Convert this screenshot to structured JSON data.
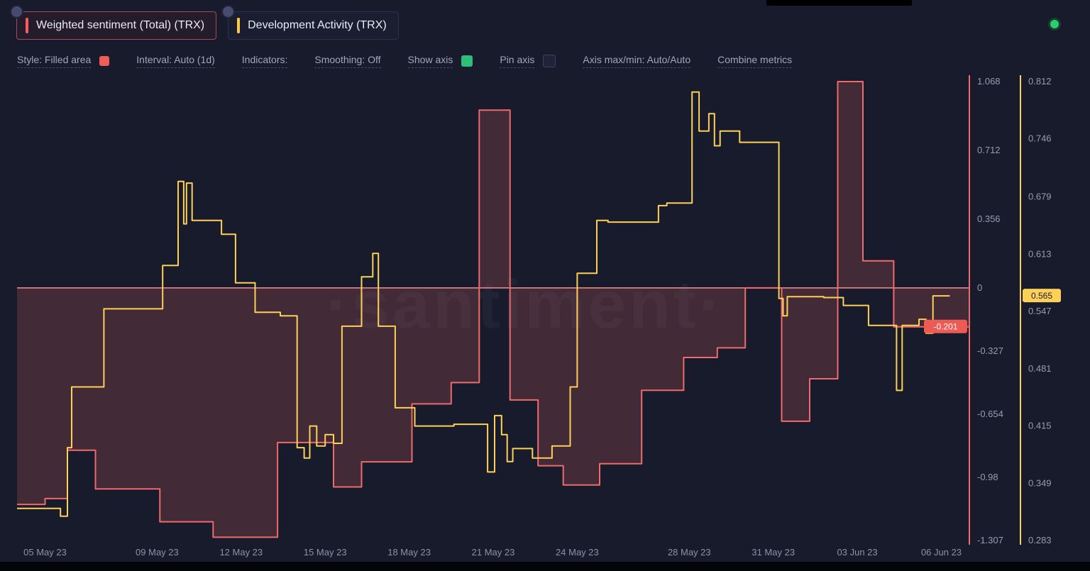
{
  "header": {
    "metrics": [
      {
        "label": "Weighted sentiment (Total) (TRX)",
        "color": "#ff5c5c",
        "active": true
      },
      {
        "label": "Development Activity (TRX)",
        "color": "#ffcb47",
        "active": false
      }
    ],
    "live_dot_color": "#2ecc71"
  },
  "toolbar": {
    "style": "Style: Filled area",
    "style_swatch_color": "#f05c57",
    "interval": "Interval: Auto (1d)",
    "indicators": "Indicators:",
    "smoothing": "Smoothing: Off",
    "show_axis": "Show axis",
    "show_axis_swatch_color": "#2fbd7a",
    "pin_axis": "Pin axis",
    "axis_maxmin": "Axis max/min: Auto/Auto",
    "combine_metrics": "Combine metrics"
  },
  "watermark": "·santiment·",
  "chart_data": {
    "type": "line",
    "subtype": "step",
    "grid": false,
    "x_span_days": 34,
    "x_start_date": "04 May 23",
    "x_ticks": [
      {
        "d": 1,
        "label": "05 May 23"
      },
      {
        "d": 5,
        "label": "09 May 23"
      },
      {
        "d": 8,
        "label": "12 May 23"
      },
      {
        "d": 11,
        "label": "15 May 23"
      },
      {
        "d": 14,
        "label": "18 May 23"
      },
      {
        "d": 17,
        "label": "21 May 23"
      },
      {
        "d": 20,
        "label": "24 May 23"
      },
      {
        "d": 24,
        "label": "28 May 23"
      },
      {
        "d": 27,
        "label": "31 May 23"
      },
      {
        "d": 30,
        "label": "03 Jun 23"
      },
      {
        "d": 33,
        "label": "06 Jun 23"
      }
    ],
    "series": [
      {
        "name": "Weighted sentiment (Total) (TRX)",
        "style": "filled-step-area",
        "color": "#ef6a6a",
        "fill_color": "rgba(239,106,106,0.2)",
        "zero_line": true,
        "axis": {
          "min": -1.307,
          "max": 1.068,
          "ticks": [
            "1.068",
            "0.712",
            "0.356",
            "0",
            "-0.327",
            "-0.654",
            "-0.98",
            "-1.307"
          ]
        },
        "badge": {
          "label": "-0.201",
          "value": -0.201
        },
        "points": [
          [
            0,
            -1.12
          ],
          [
            1,
            -1.09
          ],
          [
            1.8,
            -0.84
          ],
          [
            2.8,
            -1.04
          ],
          [
            5.1,
            -1.21
          ],
          [
            7,
            -1.29
          ],
          [
            9.3,
            -0.8
          ],
          [
            11.3,
            -1.03
          ],
          [
            12.3,
            -0.9
          ],
          [
            14.1,
            -0.6
          ],
          [
            15.5,
            -0.49
          ],
          [
            16.5,
            0.92
          ],
          [
            17.6,
            -0.58
          ],
          [
            18.6,
            -0.92
          ],
          [
            19.5,
            -1.02
          ],
          [
            20.8,
            -0.91
          ],
          [
            22.3,
            -0.53
          ],
          [
            23.8,
            -0.36
          ],
          [
            25,
            -0.31
          ],
          [
            26,
            0
          ],
          [
            27.3,
            -0.69
          ],
          [
            28.3,
            -0.47
          ],
          [
            29.3,
            1.068
          ],
          [
            30.2,
            0.14
          ],
          [
            31.3,
            -0.201
          ],
          [
            34,
            -0.201
          ]
        ]
      },
      {
        "name": "Development Activity (TRX)",
        "style": "step-line",
        "color": "#fdd057",
        "axis": {
          "min": 0.283,
          "max": 0.812,
          "ticks": [
            "0.812",
            "0.746",
            "0.679",
            "0.613",
            "0.547",
            "0.481",
            "0.415",
            "0.349",
            "0.283"
          ]
        },
        "badge": {
          "label": "0.565",
          "value": 0.565
        },
        "points": [
          [
            0,
            0.32
          ],
          [
            1.55,
            0.311
          ],
          [
            1.8,
            0.39
          ],
          [
            1.95,
            0.46
          ],
          [
            3.1,
            0.55
          ],
          [
            5.2,
            0.6
          ],
          [
            5.75,
            0.697
          ],
          [
            5.95,
            0.648
          ],
          [
            6.05,
            0.695
          ],
          [
            6.25,
            0.652
          ],
          [
            7.3,
            0.636
          ],
          [
            7.8,
            0.58
          ],
          [
            8.5,
            0.546
          ],
          [
            9.4,
            0.542
          ],
          [
            10,
            0.39
          ],
          [
            10.25,
            0.378
          ],
          [
            10.45,
            0.415
          ],
          [
            10.7,
            0.392
          ],
          [
            11,
            0.405
          ],
          [
            11.3,
            0.395
          ],
          [
            11.6,
            0.53
          ],
          [
            12.3,
            0.587
          ],
          [
            12.7,
            0.614
          ],
          [
            12.9,
            0.53
          ],
          [
            13.5,
            0.436
          ],
          [
            14.2,
            0.415
          ],
          [
            15.6,
            0.417
          ],
          [
            16.8,
            0.362
          ],
          [
            17.05,
            0.427
          ],
          [
            17.3,
            0.405
          ],
          [
            17.5,
            0.374
          ],
          [
            17.7,
            0.389
          ],
          [
            18.4,
            0.378
          ],
          [
            19.1,
            0.392
          ],
          [
            19.75,
            0.46
          ],
          [
            20,
            0.591
          ],
          [
            20.7,
            0.652
          ],
          [
            21.1,
            0.65
          ],
          [
            22.9,
            0.669
          ],
          [
            23.2,
            0.672
          ],
          [
            24.1,
            0.8
          ],
          [
            24.35,
            0.755
          ],
          [
            24.7,
            0.775
          ],
          [
            24.9,
            0.738
          ],
          [
            25.1,
            0.755
          ],
          [
            25.8,
            0.742
          ],
          [
            27.2,
            0.562
          ],
          [
            27.35,
            0.542
          ],
          [
            27.5,
            0.564
          ],
          [
            28.8,
            0.563
          ],
          [
            29.5,
            0.554
          ],
          [
            30.4,
            0.531
          ],
          [
            31.4,
            0.456
          ],
          [
            31.6,
            0.531
          ],
          [
            32.2,
            0.538
          ],
          [
            32.45,
            0.522
          ],
          [
            32.7,
            0.565
          ],
          [
            33.3,
            0.565
          ]
        ]
      }
    ]
  }
}
